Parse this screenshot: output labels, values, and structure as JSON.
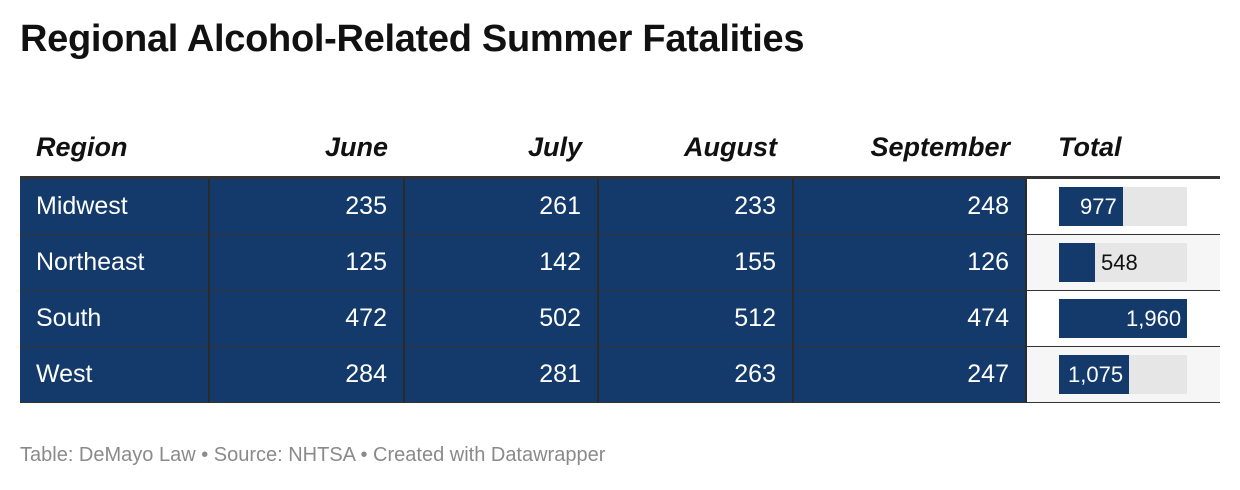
{
  "title": "Regional Alcohol-Related Summer Fatalities",
  "footer": "Table: DeMayo Law • Source: NHTSA • Created with Datawrapper",
  "colors": {
    "bar": "#133a6b",
    "track": "#e6e6e6",
    "row_alt": "#f6f6f6"
  },
  "chart_data": {
    "type": "table",
    "columns": [
      "Region",
      "June",
      "July",
      "August",
      "September",
      "Total"
    ],
    "rows": [
      {
        "region": "Midwest",
        "june": "235",
        "july": "261",
        "august": "233",
        "september": "248",
        "total_label": "977",
        "total": 977
      },
      {
        "region": "Northeast",
        "june": "125",
        "july": "142",
        "august": "155",
        "september": "126",
        "total_label": "548",
        "total": 548
      },
      {
        "region": "South",
        "june": "472",
        "july": "502",
        "august": "512",
        "september": "474",
        "total_label": "1,960",
        "total": 1960
      },
      {
        "region": "West",
        "june": "284",
        "july": "281",
        "august": "263",
        "september": "247",
        "total_label": "1,075",
        "total": 1075
      }
    ],
    "total_bar_max": 1960
  }
}
